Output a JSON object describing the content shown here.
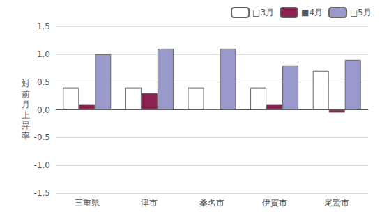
{
  "chart_data": {
    "type": "bar",
    "categories": [
      "三重県",
      "津市",
      "桑名市",
      "伊賀市",
      "尾鷲市"
    ],
    "series": [
      {
        "name": "□3月",
        "color": "#ffffff",
        "values": [
          0.4,
          0.4,
          0.4,
          0.4,
          0.7
        ]
      },
      {
        "name": "■4月",
        "color": "#8b2252",
        "values": [
          0.1,
          0.3,
          0.0,
          0.1,
          -0.05
        ]
      },
      {
        "name": "□5月",
        "color": "#9999cc",
        "values": [
          1.0,
          1.1,
          1.1,
          0.8,
          0.9
        ]
      }
    ],
    "ylabel": "対\n前\n月\n上\n昇\n率",
    "ylim": [
      -1.5,
      1.5
    ],
    "yticks": [
      -1.5,
      {
        "value": -1.0,
        "label": "-1.0"
      },
      -0.5,
      {
        "value": 0.0,
        "label": "0.0"
      },
      0.5,
      {
        "value": 1.0,
        "label": "1.0"
      },
      1.5
    ],
    "grid": true,
    "legend": "upper right"
  }
}
